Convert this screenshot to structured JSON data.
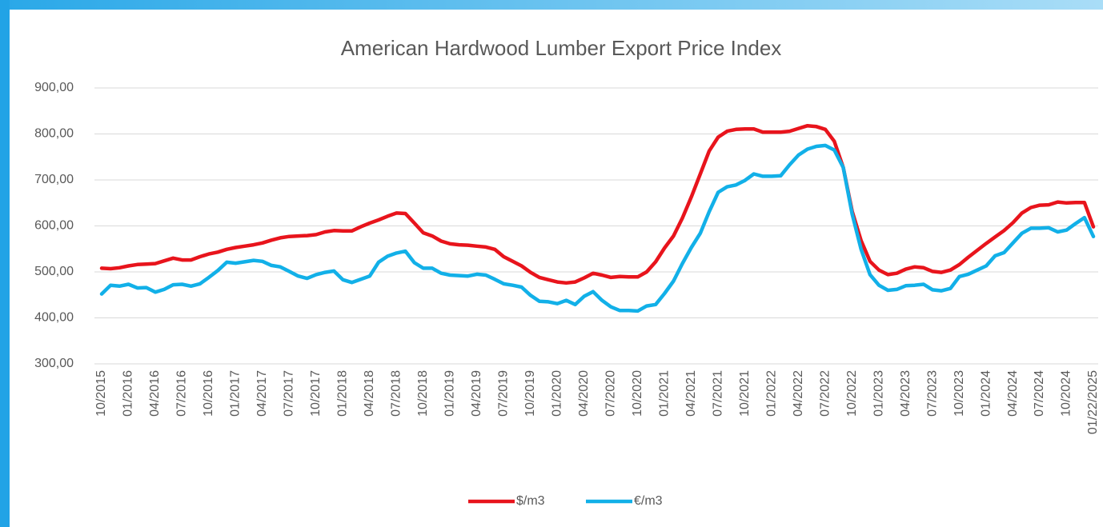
{
  "chart_data": {
    "type": "line",
    "title": "American Hardwood Lumber Export Price Index",
    "categories": [
      "10/2015",
      null,
      null,
      "01/2016",
      null,
      null,
      "04/2016",
      null,
      null,
      "07/2016",
      null,
      null,
      "10/2016",
      null,
      null,
      "01/2017",
      null,
      null,
      "04/2017",
      null,
      null,
      "07/2017",
      null,
      null,
      "10/2017",
      null,
      null,
      "01/2018",
      null,
      null,
      "04/2018",
      null,
      null,
      "07/2018",
      null,
      null,
      "10/2018",
      null,
      null,
      "01/2019",
      null,
      null,
      "04/2019",
      null,
      null,
      "07/2019",
      null,
      null,
      "10/2019",
      null,
      null,
      "01/2020",
      null,
      null,
      "04/2020",
      null,
      null,
      "07/2020",
      null,
      null,
      "10/2020",
      null,
      null,
      "01/2021",
      null,
      null,
      "04/2021",
      null,
      null,
      "07/2021",
      null,
      null,
      "10/2021",
      null,
      null,
      "01/2022",
      null,
      null,
      "04/2022",
      null,
      null,
      "07/2022",
      null,
      null,
      "10/2022",
      null,
      null,
      "01/2023",
      null,
      null,
      "04/2023",
      null,
      null,
      "07/2023",
      null,
      null,
      "10/2023",
      null,
      null,
      "01/2024",
      null,
      null,
      "04/2024",
      null,
      null,
      "07/2024",
      null,
      null,
      "10/2024",
      null,
      null,
      "01/22/2025"
    ],
    "series": [
      {
        "name": "$/m3",
        "color": "#e8141c",
        "values": [
          508,
          507,
          509,
          513,
          516,
          517,
          518,
          524,
          530,
          526,
          526,
          533,
          539,
          543,
          549,
          553,
          556,
          559,
          563,
          569,
          574,
          577,
          578,
          579,
          581,
          587,
          590,
          589,
          589,
          598,
          606,
          613,
          621,
          628,
          627,
          606,
          585,
          578,
          567,
          561,
          559,
          558,
          556,
          554,
          549,
          533,
          523,
          513,
          499,
          488,
          483,
          478,
          476,
          478,
          487,
          497,
          493,
          488,
          490,
          489,
          489,
          500,
          522,
          552,
          578,
          617,
          663,
          713,
          763,
          793,
          806,
          810,
          811,
          811,
          804,
          804,
          804,
          806,
          812,
          818,
          816,
          810,
          784,
          727,
          632,
          568,
          523,
          504,
          494,
          497,
          506,
          511,
          509,
          501,
          499,
          504,
          516,
          532,
          547,
          562,
          576,
          590,
          607,
          628,
          640,
          645,
          646,
          652,
          650,
          651,
          651,
          598
        ]
      },
      {
        "name": "€/m3",
        "color": "#12b0e8",
        "values": [
          452,
          471,
          469,
          473,
          465,
          466,
          456,
          462,
          472,
          473,
          469,
          474,
          488,
          503,
          521,
          519,
          522,
          525,
          523,
          514,
          511,
          501,
          491,
          486,
          494,
          499,
          502,
          483,
          477,
          484,
          491,
          521,
          534,
          541,
          545,
          520,
          508,
          508,
          497,
          493,
          492,
          491,
          495,
          493,
          484,
          474,
          471,
          467,
          449,
          436,
          435,
          431,
          438,
          429,
          447,
          457,
          438,
          424,
          416,
          416,
          415,
          426,
          429,
          453,
          480,
          518,
          553,
          584,
          631,
          673,
          685,
          689,
          699,
          713,
          708,
          708,
          709,
          733,
          754,
          767,
          773,
          775,
          765,
          727,
          626,
          549,
          494,
          471,
          460,
          462,
          470,
          471,
          473,
          461,
          459,
          464,
          490,
          495,
          504,
          513,
          535,
          542,
          563,
          584,
          595,
          595,
          596,
          587,
          591,
          605,
          618,
          577
        ]
      }
    ],
    "ylim": [
      300,
      900
    ],
    "yticks": [
      {
        "value": 300,
        "label": "300,00"
      },
      {
        "value": 400,
        "label": "400,00"
      },
      {
        "value": 500,
        "label": "500,00"
      },
      {
        "value": 600,
        "label": "600,00"
      },
      {
        "value": 700,
        "label": "700,00"
      },
      {
        "value": 800,
        "label": "800,00"
      },
      {
        "value": 900,
        "label": "900,00"
      }
    ],
    "grid": true,
    "legend": "bottom"
  }
}
